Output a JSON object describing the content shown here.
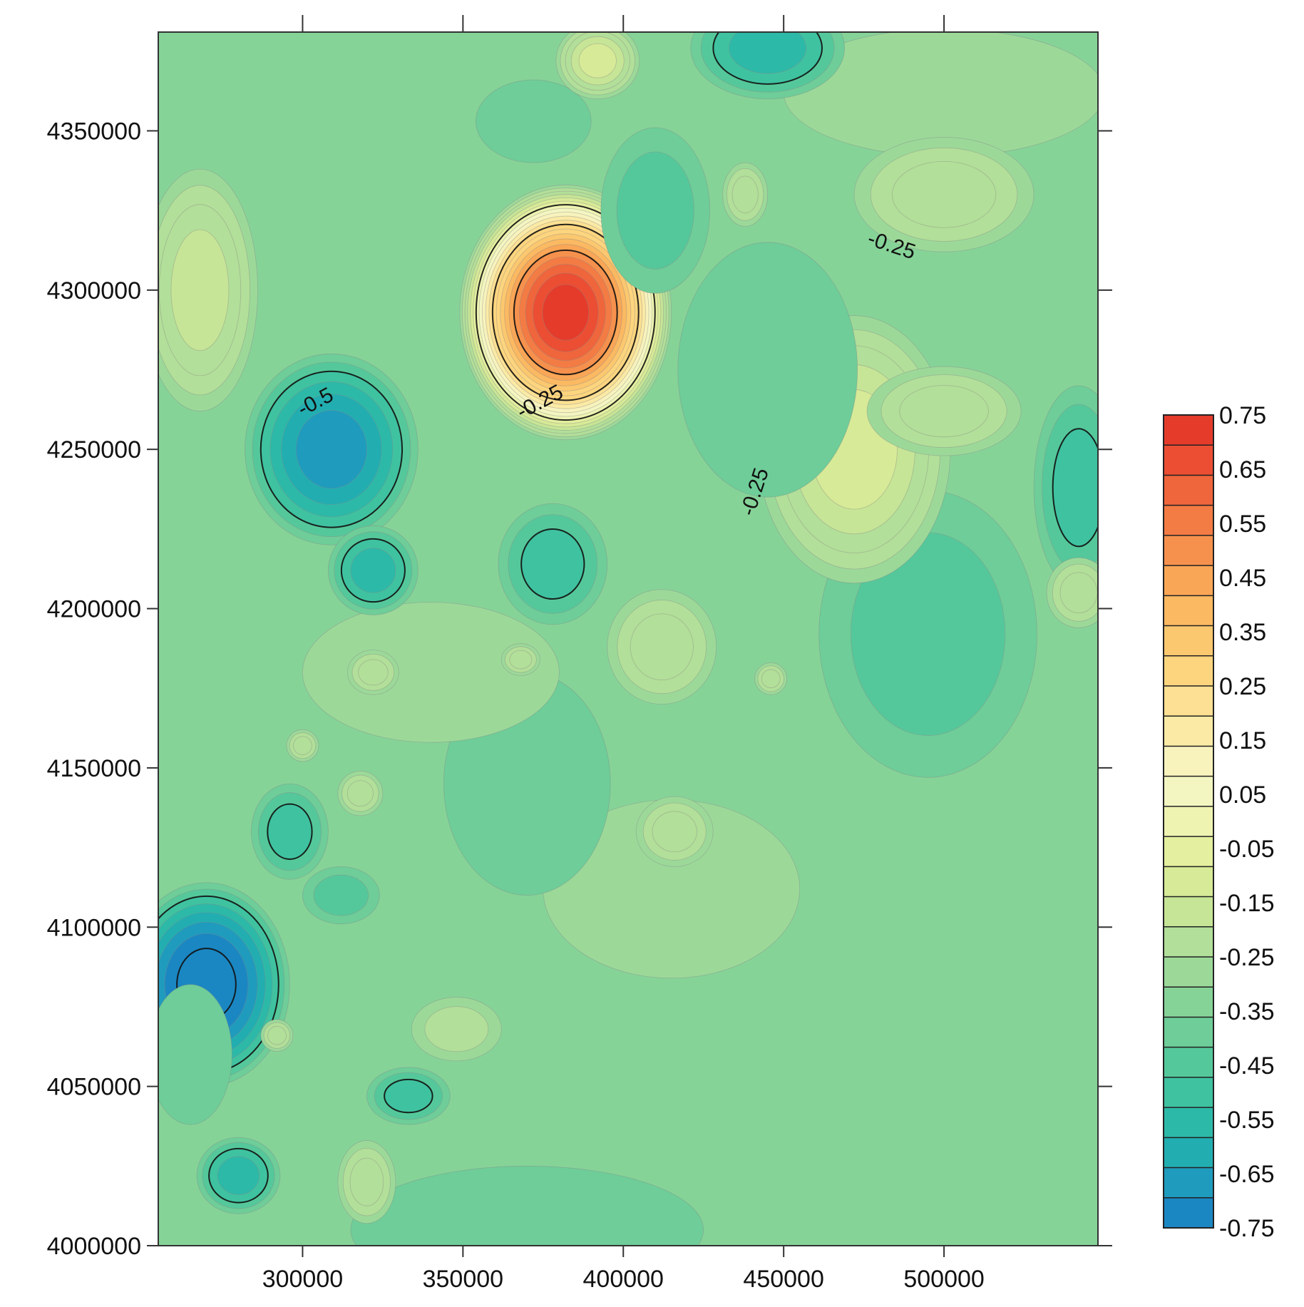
{
  "chart_data": {
    "type": "contour",
    "title": "",
    "xlabel": "",
    "ylabel": "",
    "xlim": [
      255000,
      548000
    ],
    "ylim": [
      4000000,
      4381000
    ],
    "x_ticks": [
      300000,
      350000,
      400000,
      450000,
      500000
    ],
    "y_ticks": [
      4000000,
      4050000,
      4100000,
      4150000,
      4200000,
      4250000,
      4300000,
      4350000
    ],
    "x_tick_labels": [
      "300000",
      "350000",
      "400000",
      "450000",
      "500000"
    ],
    "y_tick_labels": [
      "4000000",
      "4050000",
      "4100000",
      "4150000",
      "4200000",
      "4250000",
      "4300000",
      "4350000"
    ],
    "grid": false,
    "background_level": -0.35,
    "colorbar": {
      "levels": [
        -0.75,
        -0.7,
        -0.65,
        -0.6,
        -0.55,
        -0.5,
        -0.45,
        -0.4,
        -0.35,
        -0.3,
        -0.25,
        -0.2,
        -0.15,
        -0.1,
        -0.05,
        0.0,
        0.05,
        0.1,
        0.15,
        0.2,
        0.25,
        0.3,
        0.35,
        0.4,
        0.45,
        0.5,
        0.55,
        0.6,
        0.65,
        0.7,
        0.75
      ],
      "labels": [
        "0.75",
        "0.65",
        "0.55",
        "0.45",
        "0.35",
        "0.25",
        "0.15",
        "0.05",
        "-0.05",
        "-0.15",
        "-0.25",
        "-0.35",
        "-0.45",
        "-0.55",
        "-0.65",
        "-0.75"
      ],
      "label_values": [
        0.75,
        0.65,
        0.55,
        0.45,
        0.35,
        0.25,
        0.15,
        0.05,
        -0.05,
        -0.15,
        -0.25,
        -0.35,
        -0.45,
        -0.55,
        -0.65,
        -0.75
      ],
      "colors_low_to_high": [
        "#1a87c3",
        "#1f9bbd",
        "#22aeb1",
        "#2db9a8",
        "#3fc2a0",
        "#55c89b",
        "#6ecd98",
        "#86d398",
        "#9cd999",
        "#b2df99",
        "#c6e596",
        "#d7ea97",
        "#e4ef9f",
        "#eef3b2",
        "#f4f6c2",
        "#f8f3bd",
        "#fbeaa5",
        "#fde093",
        "#fdd57e",
        "#fcc86f",
        "#fbb962",
        "#f9a656",
        "#f6914d",
        "#f37b44",
        "#ef653c",
        "#eb4e33",
        "#e53b2b"
      ],
      "placement": "right"
    },
    "features": [
      {
        "x": 382000,
        "y": 4293000,
        "rx": 33000,
        "ry": 40000,
        "peak": 0.72
      },
      {
        "x": 309000,
        "y": 4250000,
        "rx": 27000,
        "ry": 30000,
        "peak": -0.64
      },
      {
        "x": 270000,
        "y": 4082000,
        "rx": 26000,
        "ry": 32000,
        "peak": -0.75
      },
      {
        "x": 445000,
        "y": 4376000,
        "rx": 24000,
        "ry": 16000,
        "peak": -0.56
      },
      {
        "x": 322000,
        "y": 4212000,
        "rx": 14000,
        "ry": 14000,
        "peak": -0.56
      },
      {
        "x": 410000,
        "y": 4325000,
        "rx": 17000,
        "ry": 26000,
        "peak": -0.46
      },
      {
        "x": 378000,
        "y": 4214000,
        "rx": 17000,
        "ry": 19000,
        "peak": -0.5
      },
      {
        "x": 495000,
        "y": 4192000,
        "rx": 34000,
        "ry": 45000,
        "peak": -0.46
      },
      {
        "x": 542000,
        "y": 4238000,
        "rx": 14000,
        "ry": 32000,
        "peak": -0.48
      },
      {
        "x": 280000,
        "y": 4022000,
        "rx": 13000,
        "ry": 12000,
        "peak": -0.54
      },
      {
        "x": 333000,
        "y": 4047000,
        "rx": 13000,
        "ry": 9000,
        "peak": -0.49
      },
      {
        "x": 296000,
        "y": 4130000,
        "rx": 12000,
        "ry": 15000,
        "peak": -0.49
      },
      {
        "x": 370000,
        "y": 4145000,
        "rx": 26000,
        "ry": 35000,
        "peak": -0.42
      },
      {
        "x": 370000,
        "y": 4005000,
        "rx": 55000,
        "ry": 20000,
        "peak": -0.42
      },
      {
        "x": 372000,
        "y": 4353000,
        "rx": 18000,
        "ry": 13000,
        "peak": -0.42
      },
      {
        "x": 445000,
        "y": 4275000,
        "rx": 28000,
        "ry": 40000,
        "peak": -0.42
      },
      {
        "x": 312000,
        "y": 4110000,
        "rx": 12000,
        "ry": 9000,
        "peak": -0.43
      },
      {
        "x": 265000,
        "y": 4060000,
        "rx": 13000,
        "ry": 22000,
        "peak": -0.42
      },
      {
        "x": 500000,
        "y": 4330000,
        "rx": 28000,
        "ry": 18000,
        "peak": -0.18
      },
      {
        "x": 472000,
        "y": 4250000,
        "rx": 30000,
        "ry": 42000,
        "peak": -0.09
      },
      {
        "x": 500000,
        "y": 4262000,
        "rx": 24000,
        "ry": 14000,
        "peak": -0.18
      },
      {
        "x": 268000,
        "y": 4300000,
        "rx": 18000,
        "ry": 38000,
        "peak": -0.15
      },
      {
        "x": 392000,
        "y": 4372000,
        "rx": 13000,
        "ry": 12000,
        "peak": -0.12
      },
      {
        "x": 412000,
        "y": 4188000,
        "rx": 17000,
        "ry": 18000,
        "peak": -0.18
      },
      {
        "x": 416000,
        "y": 4130000,
        "rx": 12000,
        "ry": 11000,
        "peak": -0.2
      },
      {
        "x": 322000,
        "y": 4180000,
        "rx": 8000,
        "ry": 7000,
        "peak": -0.2
      },
      {
        "x": 318000,
        "y": 4142000,
        "rx": 7000,
        "ry": 7000,
        "peak": -0.2
      },
      {
        "x": 320000,
        "y": 4020000,
        "rx": 9000,
        "ry": 13000,
        "peak": -0.2
      },
      {
        "x": 438000,
        "y": 4330000,
        "rx": 7000,
        "ry": 10000,
        "peak": -0.2
      },
      {
        "x": 542000,
        "y": 4205000,
        "rx": 10000,
        "ry": 11000,
        "peak": -0.2
      },
      {
        "x": 446000,
        "y": 4178000,
        "rx": 5000,
        "ry": 5000,
        "peak": -0.2
      },
      {
        "x": 368000,
        "y": 4184000,
        "rx": 6000,
        "ry": 5000,
        "peak": -0.2
      },
      {
        "x": 292000,
        "y": 4066000,
        "rx": 5000,
        "ry": 5000,
        "peak": -0.2
      },
      {
        "x": 300000,
        "y": 4157000,
        "rx": 5000,
        "ry": 5000,
        "peak": -0.2
      },
      {
        "x": 348000,
        "y": 4068000,
        "rx": 14000,
        "ry": 10000,
        "peak": -0.27
      },
      {
        "x": 415000,
        "y": 4112000,
        "rx": 40000,
        "ry": 28000,
        "peak": -0.29
      },
      {
        "x": 340000,
        "y": 4180000,
        "rx": 40000,
        "ry": 22000,
        "peak": -0.3
      },
      {
        "x": 500000,
        "y": 4362000,
        "rx": 50000,
        "ry": 20000,
        "peak": -0.3
      }
    ],
    "contour_labels": [
      {
        "text": "-0.5",
        "x": 305000,
        "y": 4263000,
        "angle": -28
      },
      {
        "text": "-0.25",
        "x": 375000,
        "y": 4263000,
        "angle": -28
      },
      {
        "text": "-0.25",
        "x": 483000,
        "y": 4312000,
        "angle": 18
      },
      {
        "text": "-0.25",
        "x": 443000,
        "y": 4236000,
        "angle": -72
      }
    ]
  }
}
